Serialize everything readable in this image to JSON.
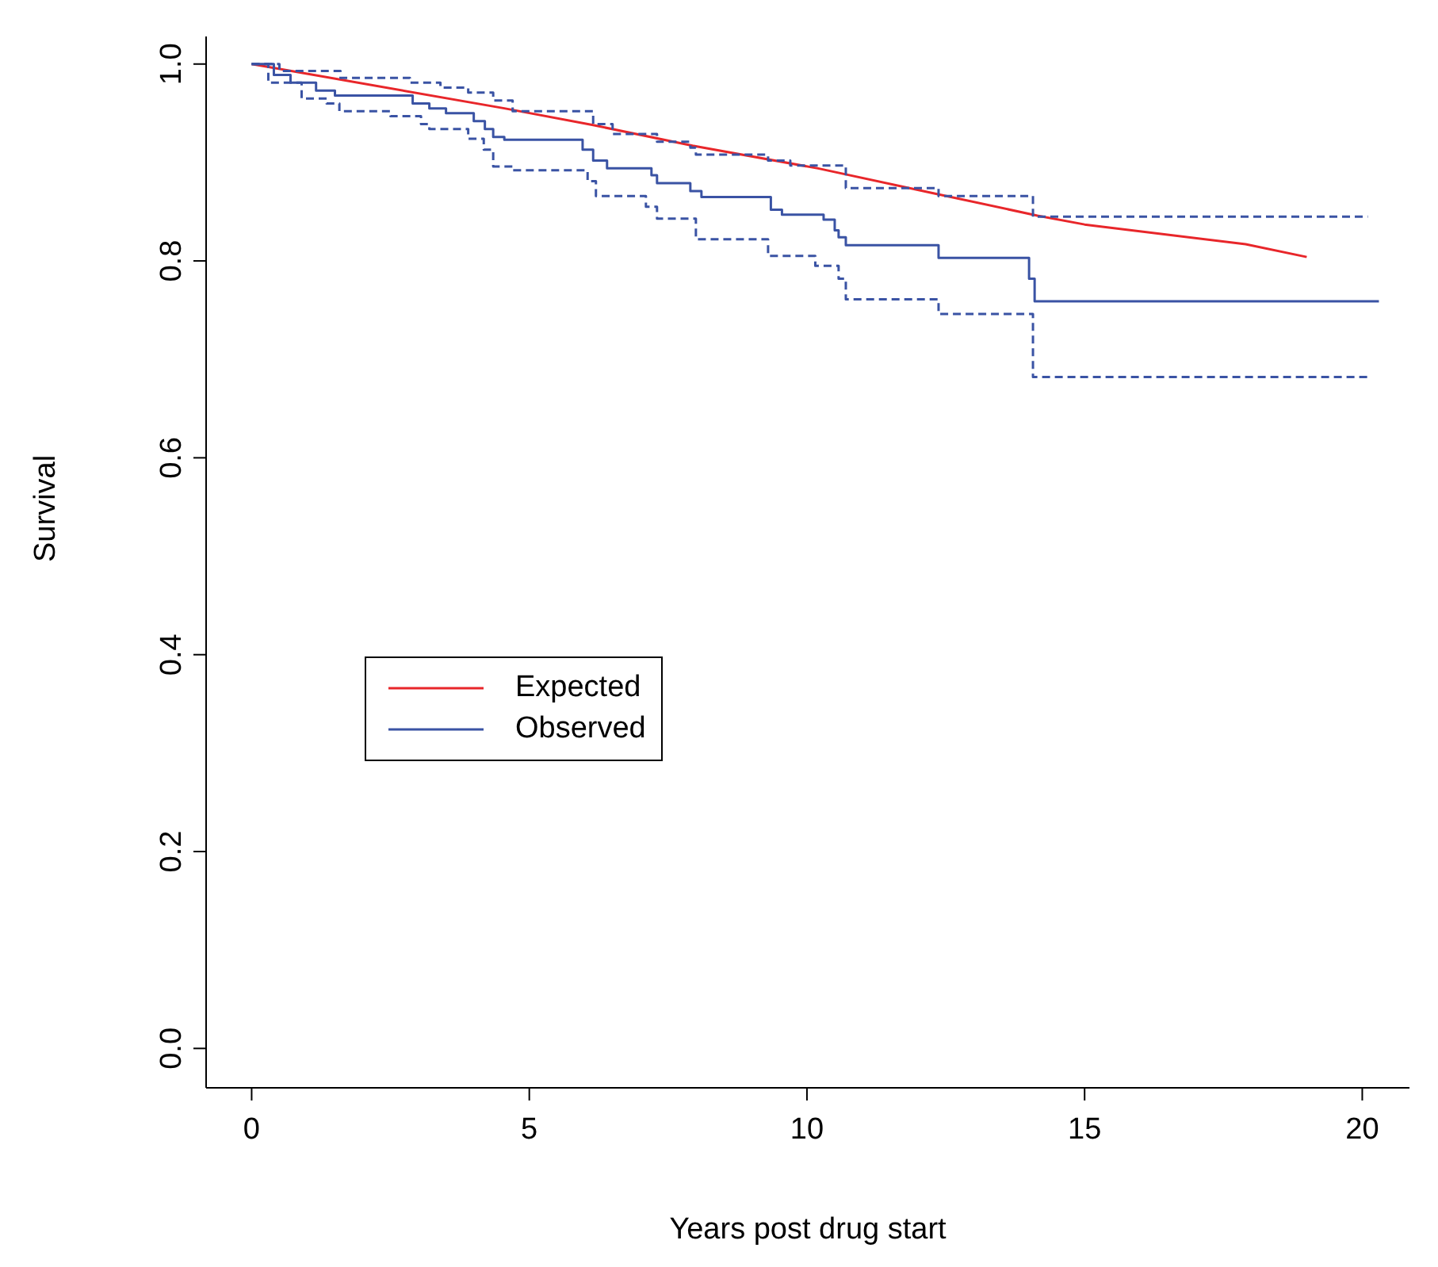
{
  "chart_data": {
    "type": "step",
    "xlabel": "Years post drug start",
    "ylabel": "Survival",
    "xlim": [
      -0.82,
      20.85
    ],
    "ylim": [
      -0.04,
      1.028
    ],
    "xticks": [
      0,
      5,
      10,
      15,
      20
    ],
    "yticks": [
      {
        "value": 0,
        "label": "0.0"
      },
      {
        "value": 0.2,
        "label": "0.2"
      },
      {
        "value": 0.4,
        "label": "0.4"
      },
      {
        "value": 0.6,
        "label": "0.6"
      },
      {
        "value": 0.8,
        "label": "0.8"
      },
      {
        "value": 1,
        "label": "1.0"
      }
    ],
    "grid": false,
    "legend": "left",
    "series": [
      {
        "name": "Expected",
        "type": "line",
        "color": "#e8262a",
        "x": [
          0,
          4.55,
          6.15,
          7.94,
          10.2,
          12.26,
          14.15,
          15.0,
          17.9,
          19.0
        ],
        "values": [
          1.0,
          0.955,
          0.938,
          0.917,
          0.894,
          0.869,
          0.846,
          0.837,
          0.817,
          0.804
        ]
      },
      {
        "name": "Observed",
        "color": "#3a53a4",
        "x": [
          0,
          0.4,
          0.7,
          1.16,
          1.5,
          2.9,
          3.2,
          3.5,
          4.0,
          4.2,
          4.35,
          4.55,
          5.96,
          6.15,
          6.4,
          7.2,
          7.3,
          7.9,
          8.1,
          9.35,
          9.55,
          10.3,
          10.5,
          10.57,
          10.7,
          12.37,
          14.0,
          14.1,
          20.3
        ],
        "values": [
          1.0,
          0.989,
          0.981,
          0.973,
          0.968,
          0.96,
          0.955,
          0.95,
          0.942,
          0.934,
          0.926,
          0.923,
          0.913,
          0.902,
          0.894,
          0.887,
          0.879,
          0.871,
          0.865,
          0.852,
          0.847,
          0.842,
          0.831,
          0.824,
          0.816,
          0.803,
          0.782,
          0.759,
          0.759
        ]
      },
      {
        "line_style": "dashed",
        "color": "#3a53a4",
        "x": [
          0,
          0.5,
          1.6,
          2.85,
          3.4,
          3.9,
          4.35,
          4.7,
          6.15,
          6.5,
          7.3,
          7.9,
          8.0,
          9.3,
          9.7,
          10.7,
          12.37,
          14.07,
          20.1
        ],
        "values": [
          1.0,
          0.993,
          0.986,
          0.981,
          0.976,
          0.971,
          0.963,
          0.952,
          0.939,
          0.929,
          0.921,
          0.915,
          0.908,
          0.902,
          0.897,
          0.874,
          0.866,
          0.845,
          0.845
        ]
      },
      {
        "line_style": "dashed",
        "color": "#3a53a4",
        "x": [
          0,
          0.3,
          0.9,
          1.35,
          1.58,
          2.5,
          3.05,
          3.2,
          3.9,
          4.18,
          4.35,
          4.7,
          6.05,
          6.2,
          7.1,
          7.3,
          8.0,
          9.3,
          10.15,
          10.57,
          10.7,
          12.37,
          14.07,
          20.1
        ],
        "values": [
          1.0,
          0.981,
          0.965,
          0.96,
          0.952,
          0.947,
          0.939,
          0.934,
          0.924,
          0.913,
          0.896,
          0.892,
          0.881,
          0.866,
          0.855,
          0.843,
          0.822,
          0.805,
          0.795,
          0.782,
          0.761,
          0.746,
          0.682,
          0.682
        ]
      }
    ]
  }
}
